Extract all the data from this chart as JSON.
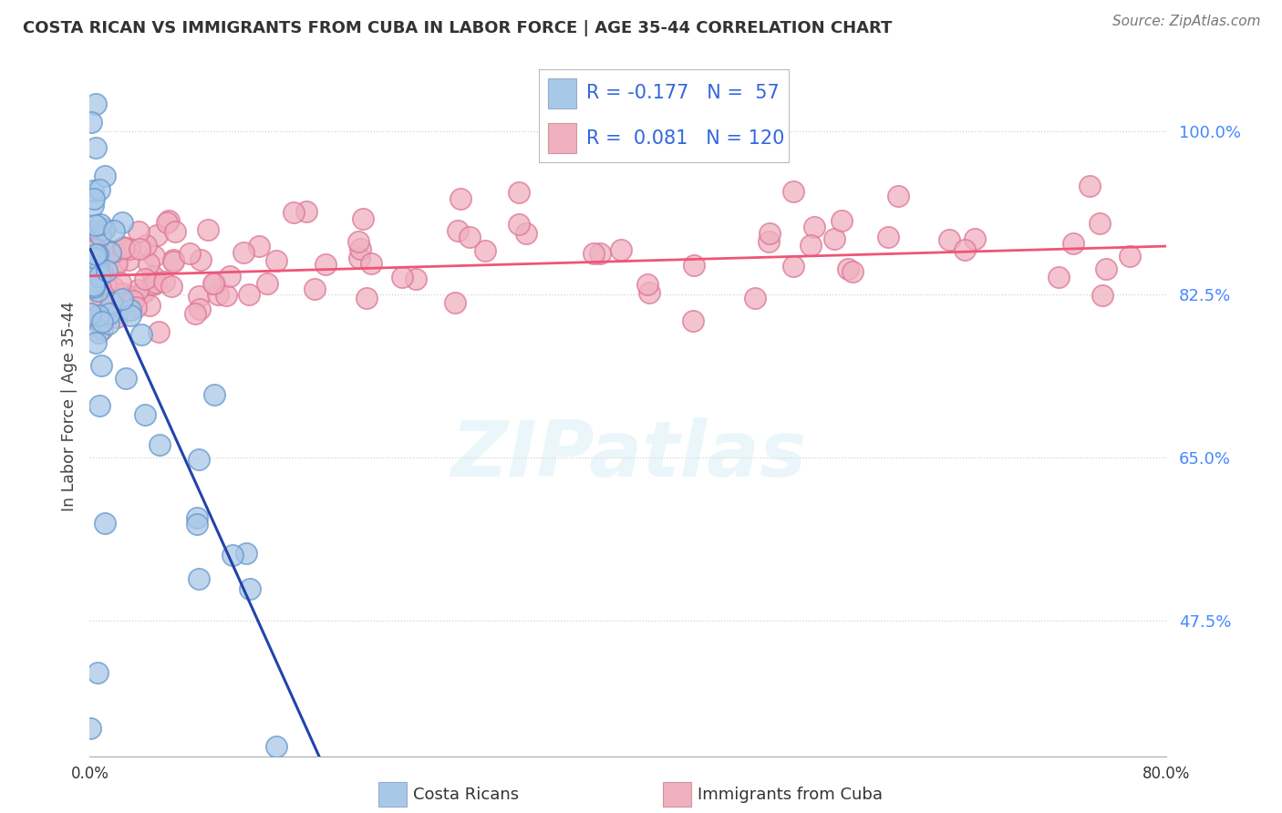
{
  "title": "COSTA RICAN VS IMMIGRANTS FROM CUBA IN LABOR FORCE | AGE 35-44 CORRELATION CHART",
  "source": "Source: ZipAtlas.com",
  "ylabel": "In Labor Force | Age 35-44",
  "yticks": [
    47.5,
    65.0,
    82.5,
    100.0
  ],
  "ytick_labels": [
    "47.5%",
    "65.0%",
    "82.5%",
    "100.0%"
  ],
  "legend_blue_r": "-0.177",
  "legend_blue_n": "57",
  "legend_pink_r": "0.081",
  "legend_pink_n": "120",
  "blue_fill": "#a8c8e8",
  "pink_fill": "#f0b0c0",
  "blue_edge": "#6699cc",
  "pink_edge": "#dd7799",
  "blue_line": "#2244aa",
  "pink_line": "#ee5577",
  "legend_text_color": "#3366dd",
  "title_color": "#333333",
  "grid_color": "#cccccc",
  "background": "#ffffff",
  "xlim": [
    0.0,
    80.0
  ],
  "ylim": [
    33.0,
    108.0
  ],
  "blue_intercept": 87.5,
  "blue_slope": -3.2,
  "pink_intercept": 84.5,
  "pink_slope": 0.04,
  "blue_noise": 8.0,
  "pink_noise": 3.5
}
